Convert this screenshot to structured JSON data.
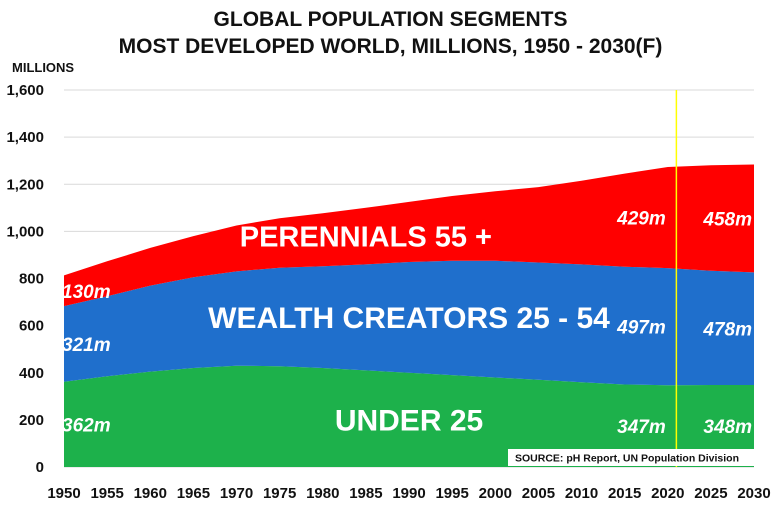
{
  "chart_data": {
    "type": "area",
    "stacked": true,
    "title": "GLOBAL POPULATION SEGMENTS",
    "subtitle": "MOST DEVELOPED WORLD, MILLIONS, 1950 - 2030(F)",
    "ylabel": "MILLIONS",
    "xlabel": "",
    "ylim": [
      0,
      1600
    ],
    "yticks": [
      "0",
      "200",
      "400",
      "600",
      "800",
      "1,000",
      "1,200",
      "1,400",
      "1,600"
    ],
    "ytick_values": [
      0,
      200,
      400,
      600,
      800,
      1000,
      1200,
      1400,
      1600
    ],
    "x": [
      1950,
      1955,
      1960,
      1965,
      1970,
      1975,
      1980,
      1985,
      1990,
      1995,
      2000,
      2005,
      2010,
      2015,
      2020,
      2025,
      2030
    ],
    "xtick_labels": [
      "1950",
      "1955",
      "1960",
      "1965",
      "1970",
      "1975",
      "1980",
      "1985",
      "1990",
      "1995",
      "2000",
      "2005",
      "2010",
      "2015",
      "2020",
      "2025",
      "2030"
    ],
    "series": [
      {
        "name": "UNDER 25",
        "color": "#1db14b",
        "values": [
          362,
          385,
          405,
          420,
          430,
          428,
          420,
          410,
          400,
          390,
          380,
          370,
          360,
          350,
          347,
          348,
          348
        ]
      },
      {
        "name": "WEALTH CREATORS 25 - 54",
        "color": "#1f6fcc",
        "values": [
          321,
          340,
          365,
          385,
          400,
          418,
          432,
          450,
          470,
          485,
          495,
          498,
          500,
          500,
          497,
          485,
          478
        ]
      },
      {
        "name": "PERENNIALS 55 +",
        "color": "#ff0000",
        "values": [
          130,
          148,
          160,
          175,
          195,
          210,
          225,
          240,
          255,
          275,
          295,
          320,
          355,
          395,
          429,
          448,
          458
        ]
      }
    ],
    "value_labels": [
      {
        "text": "130m",
        "series": 2,
        "year": 1950
      },
      {
        "text": "321m",
        "series": 1,
        "year": 1950
      },
      {
        "text": "362m",
        "series": 0,
        "year": 1950
      },
      {
        "text": "429m",
        "series": 2,
        "year": 2020
      },
      {
        "text": "497m",
        "series": 1,
        "year": 2020
      },
      {
        "text": "347m",
        "series": 0,
        "year": 2020
      },
      {
        "text": "458m",
        "series": 2,
        "year": 2030
      },
      {
        "text": "478m",
        "series": 1,
        "year": 2030
      },
      {
        "text": "348m",
        "series": 0,
        "year": 2030
      }
    ],
    "marker_year": 2021,
    "marker_color": "#ffff00",
    "grid": true,
    "source": "SOURCE: pH Report, UN Population Division"
  }
}
